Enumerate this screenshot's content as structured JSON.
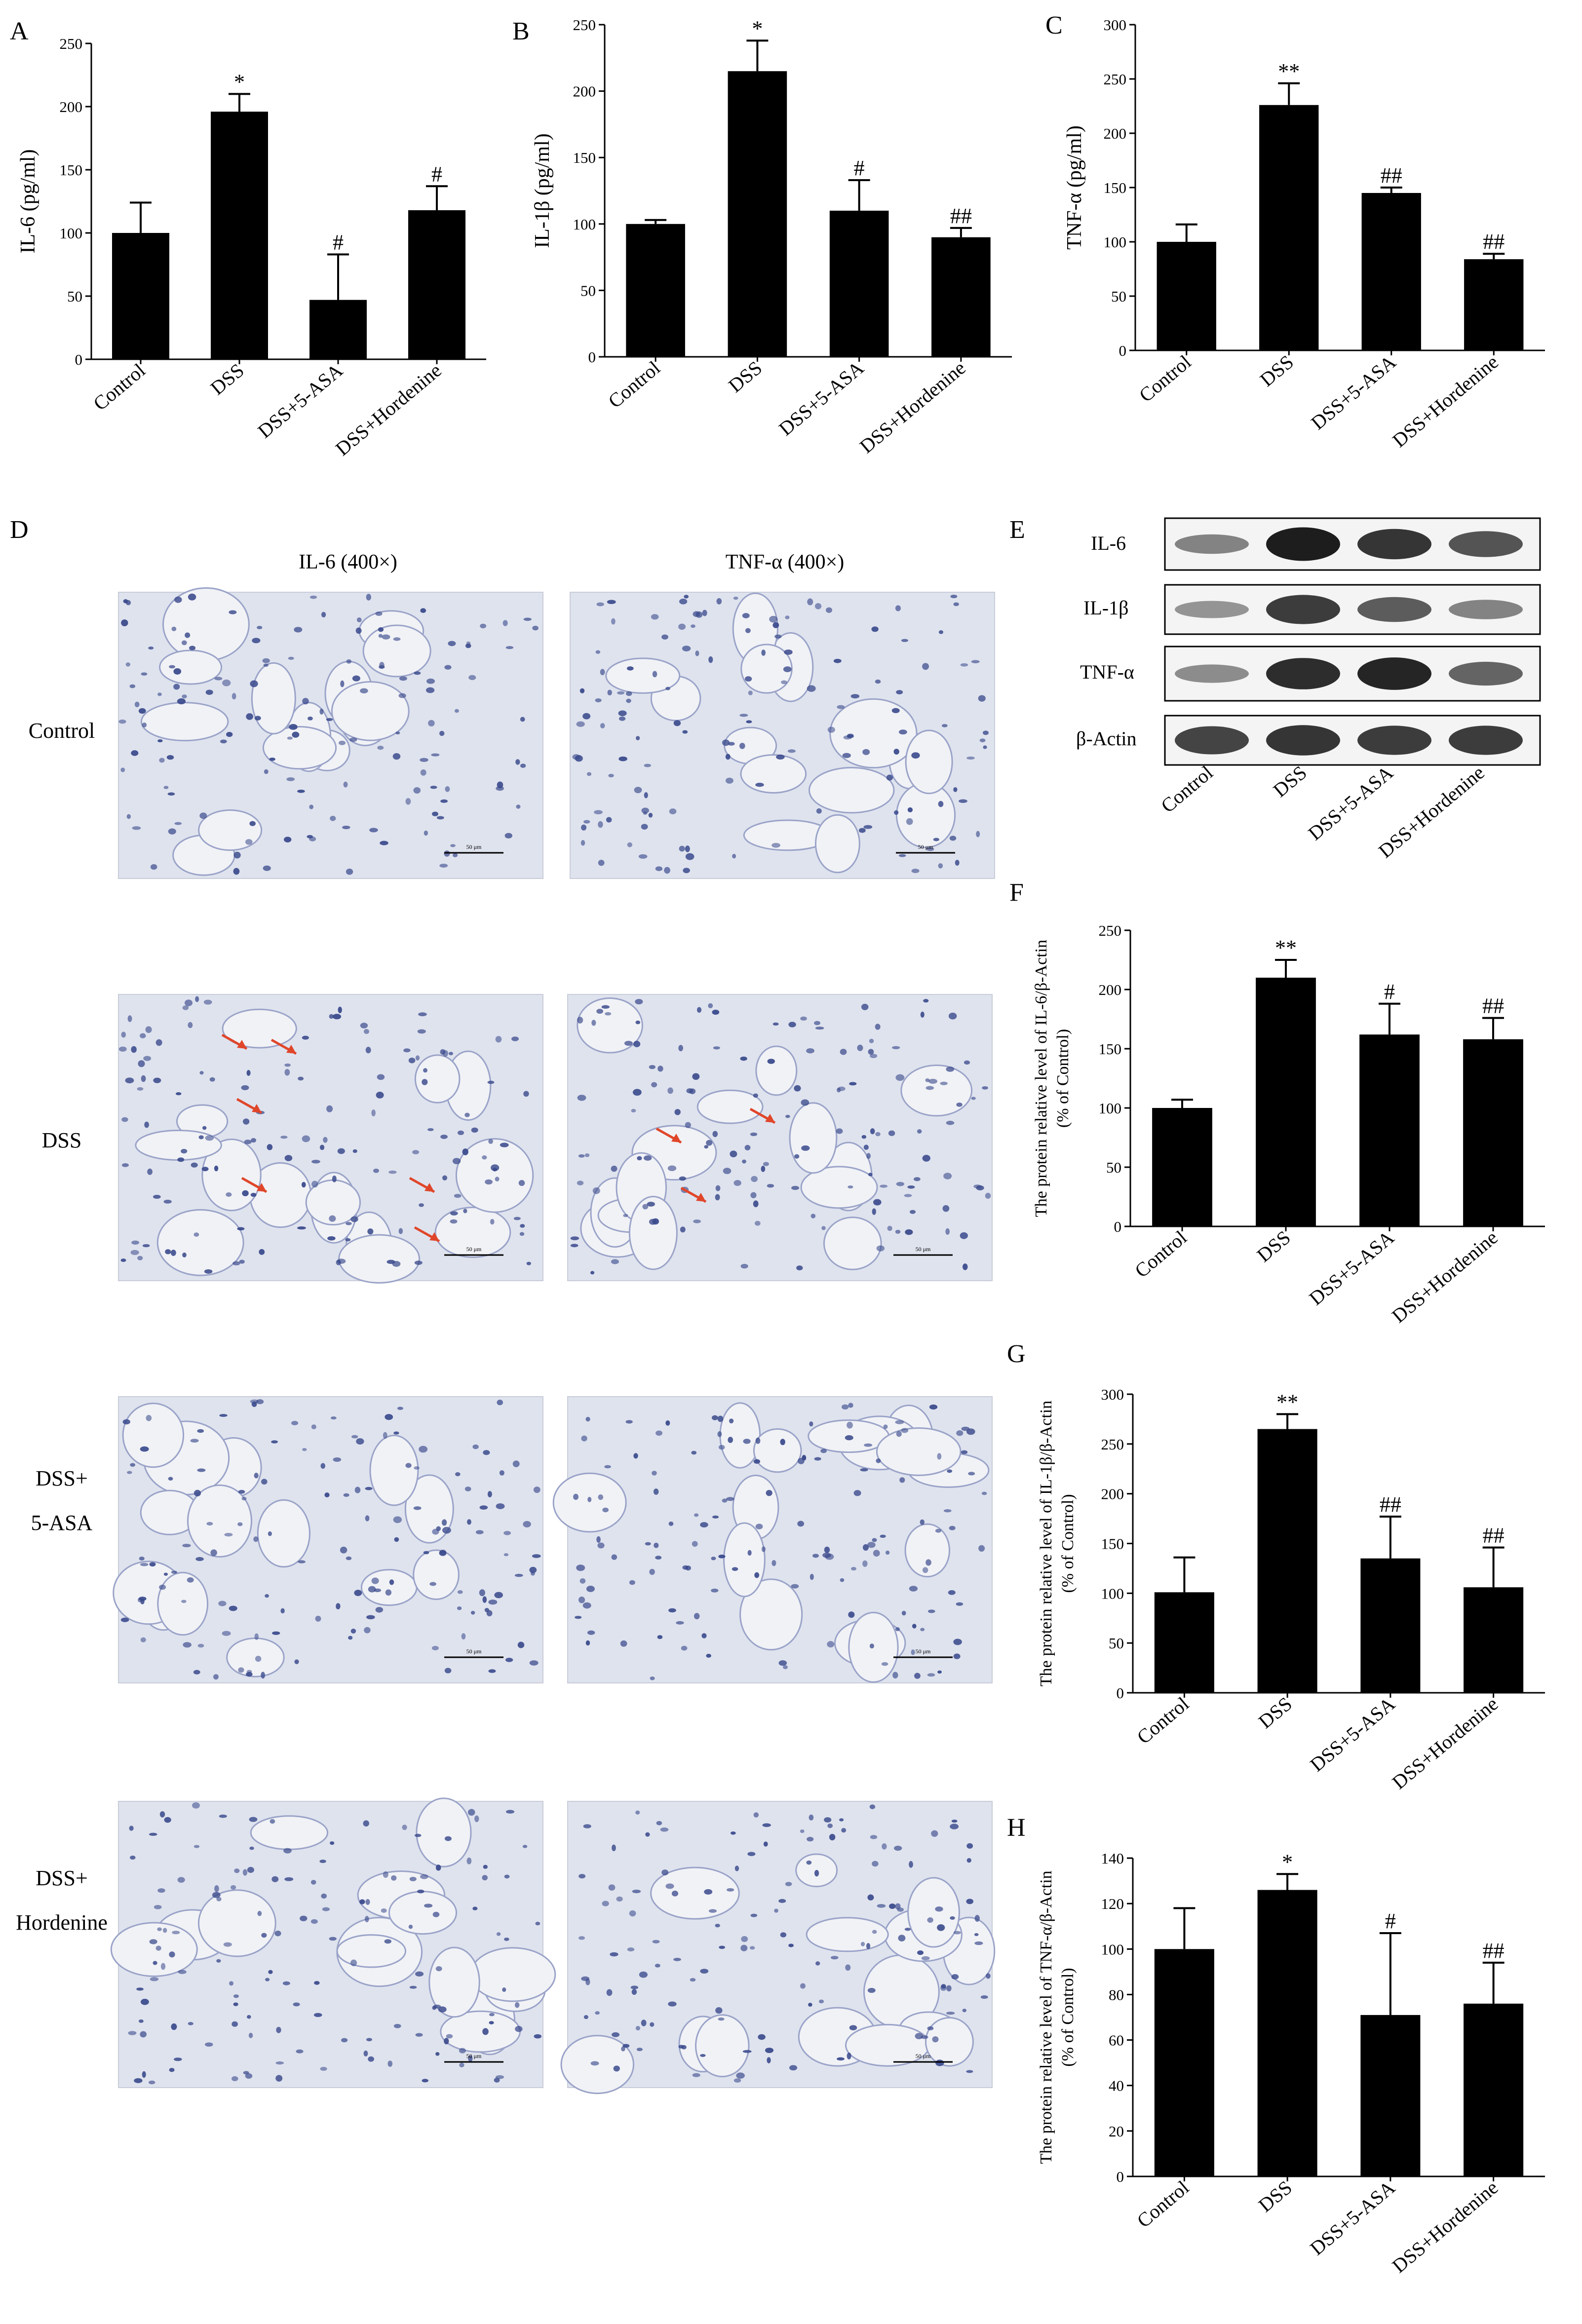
{
  "panels": {
    "a": "A",
    "b": "B",
    "c": "C",
    "d": "D",
    "e": "E",
    "f": "F",
    "g": "G",
    "h": "H"
  },
  "histology": {
    "col_headers": [
      "IL-6 (400×)",
      "TNF-α (400×)"
    ],
    "row_labels": [
      [
        "Control"
      ],
      [
        "DSS"
      ],
      [
        "DSS+",
        "5-ASA"
      ],
      [
        "DSS+",
        "Hordenine"
      ]
    ],
    "scale_bar": "50 μm"
  },
  "western_blot": {
    "bands": [
      "IL-6",
      "IL-1β",
      "TNF-α",
      "β-Actin"
    ],
    "lanes": [
      "Control",
      "DSS",
      "DSS+5-ASA",
      "DSS+Hordenine"
    ]
  },
  "colors": {
    "bar": "#000000",
    "tissue": "#dfe3ee",
    "nucleus": "#3a4a8c",
    "arrow": "#e0462a"
  },
  "chart_data": [
    {
      "id": "A",
      "type": "bar",
      "categories": [
        "Control",
        "DSS",
        "DSS+5-ASA",
        "DSS+Hordenine"
      ],
      "values": [
        100,
        196,
        47,
        118
      ],
      "errors": [
        24,
        14,
        36,
        19
      ],
      "annotations": [
        "",
        "*",
        "#",
        "#"
      ],
      "ylabel": "IL-6 (pg/ml)",
      "ylim": [
        0,
        250
      ],
      "yticks": [
        0,
        50,
        100,
        150,
        200,
        250
      ],
      "grid": false
    },
    {
      "id": "B",
      "type": "bar",
      "categories": [
        "Control",
        "DSS",
        "DSS+5-ASA",
        "DSS+Hordenine"
      ],
      "values": [
        100,
        215,
        110,
        90
      ],
      "errors": [
        3,
        23,
        23,
        7
      ],
      "annotations": [
        "",
        "*",
        "#",
        "##"
      ],
      "ylabel": "IL-1β (pg/ml)",
      "ylim": [
        0,
        250
      ],
      "yticks": [
        0,
        50,
        100,
        150,
        200,
        250
      ],
      "grid": false
    },
    {
      "id": "C",
      "type": "bar",
      "categories": [
        "Control",
        "DSS",
        "DSS+5-ASA",
        "DSS+Hordenine"
      ],
      "values": [
        100,
        226,
        145,
        84
      ],
      "errors": [
        16,
        20,
        5,
        5
      ],
      "annotations": [
        "",
        "**",
        "##",
        "##"
      ],
      "ylabel": "TNF-α (pg/ml)",
      "ylim": [
        0,
        300
      ],
      "yticks": [
        0,
        50,
        100,
        150,
        200,
        250,
        300
      ],
      "grid": false
    },
    {
      "id": "F",
      "type": "bar",
      "categories": [
        "Control",
        "DSS",
        "DSS+5-ASA",
        "DSS+Hordenine"
      ],
      "values": [
        100,
        210,
        162,
        158
      ],
      "errors": [
        7,
        15,
        26,
        18
      ],
      "annotations": [
        "",
        "**",
        "#",
        "##"
      ],
      "ylabel": [
        "The protein relative level of  IL-6/β-Actin",
        "(% of  Control)"
      ],
      "ylim": [
        0,
        250
      ],
      "yticks": [
        0,
        50,
        100,
        150,
        200,
        250
      ],
      "grid": false
    },
    {
      "id": "G",
      "type": "bar",
      "categories": [
        "Control",
        "DSS",
        "DSS+5-ASA",
        "DSS+Hordenine"
      ],
      "values": [
        101,
        265,
        135,
        106
      ],
      "errors": [
        35,
        15,
        42,
        40
      ],
      "annotations": [
        "",
        "**",
        "##",
        "##"
      ],
      "ylabel": [
        "The protein relative level of  IL-1β/β-Actin",
        "(% of  Control)"
      ],
      "ylim": [
        0,
        300
      ],
      "yticks": [
        0,
        50,
        100,
        150,
        200,
        250,
        300
      ],
      "grid": false
    },
    {
      "id": "H",
      "type": "bar",
      "categories": [
        "Control",
        "DSS",
        "DSS+5-ASA",
        "DSS+Hordenine"
      ],
      "values": [
        100,
        126,
        71,
        76
      ],
      "errors": [
        18,
        7,
        36,
        18
      ],
      "annotations": [
        "",
        "*",
        "#",
        "##"
      ],
      "ylabel": [
        "The protein relative level of  TNF-α/β-Actin",
        "(% of  Control)"
      ],
      "ylim": [
        0,
        140
      ],
      "yticks": [
        0,
        20,
        40,
        60,
        80,
        100,
        120,
        140
      ],
      "grid": false
    }
  ]
}
